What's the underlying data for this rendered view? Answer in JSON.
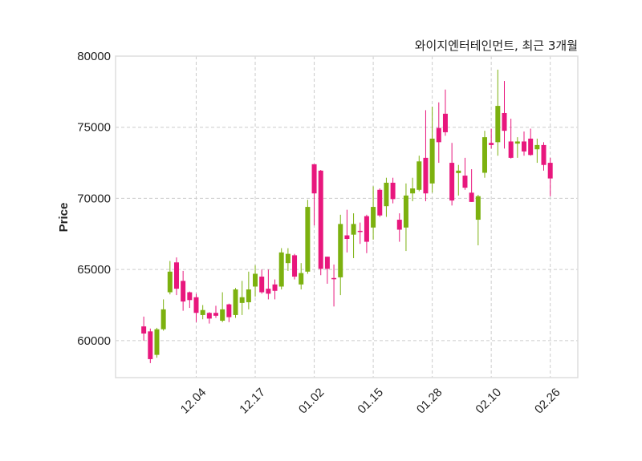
{
  "chart_data": {
    "type": "candlestick",
    "title": "와이지엔터테인먼트, 최근 3개월",
    "ylabel": "Price",
    "xlabel": "",
    "ylim": [
      57400,
      80000
    ],
    "xlim": [
      -4.3,
      66.2
    ],
    "grid": true,
    "yticks": [
      60000,
      65000,
      70000,
      75000,
      80000
    ],
    "xticks": [
      {
        "index": 8,
        "label": "12.04"
      },
      {
        "index": 17,
        "label": "12.17"
      },
      {
        "index": 26,
        "label": "01.02"
      },
      {
        "index": 35,
        "label": "01.15"
      },
      {
        "index": 44,
        "label": "01.28"
      },
      {
        "index": 53,
        "label": "02.10"
      },
      {
        "index": 62,
        "label": "02.26"
      }
    ],
    "colors": {
      "up": "#7cb10f",
      "down": "#e8177d",
      "grid": "#cccccc",
      "frame": "#dddddd"
    },
    "candles_ohlc": [
      [
        61000,
        61690,
        60000,
        60500
      ],
      [
        60650,
        60850,
        58420,
        58700
      ],
      [
        59000,
        60900,
        58800,
        60800
      ],
      [
        60800,
        62900,
        60700,
        62200
      ],
      [
        63400,
        65600,
        63250,
        64850
      ],
      [
        65500,
        65850,
        63200,
        63650
      ],
      [
        64200,
        64900,
        62100,
        62750
      ],
      [
        63400,
        63450,
        62300,
        62850
      ],
      [
        63050,
        63300,
        61300,
        61950
      ],
      [
        61800,
        62500,
        61500,
        62150
      ],
      [
        61950,
        62000,
        61200,
        61550
      ],
      [
        61950,
        62450,
        61600,
        61750
      ],
      [
        61400,
        63400,
        61300,
        62200
      ],
      [
        62550,
        62600,
        61300,
        61650
      ],
      [
        61800,
        63700,
        61600,
        63600
      ],
      [
        62650,
        64200,
        61800,
        63050
      ],
      [
        62700,
        64850,
        62200,
        63600
      ],
      [
        63800,
        65300,
        63100,
        64700
      ],
      [
        64500,
        65000,
        63300,
        63400
      ],
      [
        63650,
        65000,
        62900,
        63300
      ],
      [
        63950,
        64300,
        62900,
        63500
      ],
      [
        63800,
        66500,
        63600,
        66200
      ],
      [
        65450,
        66500,
        64900,
        66100
      ],
      [
        66000,
        66100,
        64300,
        64500
      ],
      [
        63950,
        65450,
        63600,
        64750
      ],
      [
        64850,
        69900,
        64700,
        69400
      ],
      [
        72400,
        72400,
        68100,
        70350
      ],
      [
        71950,
        72000,
        64600,
        65050
      ],
      [
        65900,
        65900,
        64000,
        65050
      ],
      [
        64400,
        65350,
        62400,
        64330
      ],
      [
        64450,
        68850,
        63200,
        68200
      ],
      [
        67400,
        69200,
        66200,
        67150
      ],
      [
        67450,
        68950,
        65800,
        68200
      ],
      [
        67720,
        68300,
        66800,
        67680
      ],
      [
        68750,
        68850,
        66150,
        66950
      ],
      [
        67950,
        70850,
        67100,
        69400
      ],
      [
        70600,
        70700,
        68700,
        68800
      ],
      [
        69450,
        71450,
        68700,
        71100
      ],
      [
        71100,
        71450,
        69650,
        69950
      ],
      [
        68500,
        68950,
        66950,
        67800
      ],
      [
        67950,
        71050,
        66300,
        70200
      ],
      [
        70350,
        71450,
        69800,
        70700
      ],
      [
        70600,
        73000,
        70500,
        72600
      ],
      [
        72850,
        76200,
        69800,
        70350
      ],
      [
        71050,
        76450,
        70400,
        74200
      ],
      [
        74950,
        76750,
        72500,
        73950
      ],
      [
        75950,
        77650,
        74400,
        74650
      ],
      [
        72500,
        73900,
        69500,
        69850
      ],
      [
        71780,
        72350,
        70200,
        71950
      ],
      [
        71600,
        72850,
        70600,
        70750
      ],
      [
        70400,
        72050,
        69750,
        69750
      ],
      [
        68500,
        70250,
        66700,
        70150
      ],
      [
        71800,
        74750,
        71450,
        74300
      ],
      [
        73900,
        74900,
        73500,
        73750
      ],
      [
        73950,
        79050,
        73000,
        76500
      ],
      [
        76000,
        78250,
        73500,
        74750
      ],
      [
        74000,
        75600,
        72800,
        72850
      ],
      [
        73850,
        74300,
        72850,
        74000
      ],
      [
        74000,
        74700,
        73000,
        73300
      ],
      [
        74200,
        74900,
        73000,
        73050
      ],
      [
        73450,
        74200,
        72500,
        73750
      ],
      [
        73750,
        73950,
        71950,
        72350
      ],
      [
        72500,
        72850,
        70150,
        71400
      ]
    ]
  }
}
